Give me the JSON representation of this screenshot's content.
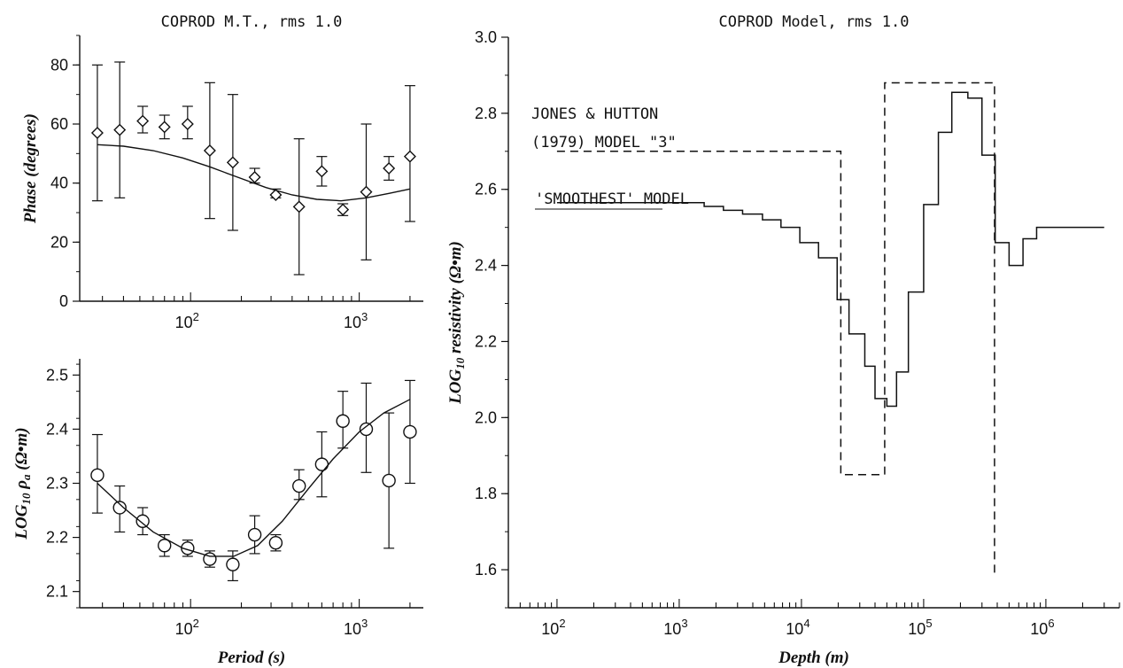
{
  "chart_data": [
    {
      "id": "phase",
      "type": "scatter",
      "title": "COPROD M.T., rms 1.0",
      "xlabel": "",
      "ylabel": "Phase (degrees)",
      "xscale": "log",
      "xlim": [
        22,
        2400
      ],
      "ylim": [
        0,
        90
      ],
      "xtick_labels": [
        "10",
        "10"
      ],
      "xtick_exponents": [
        "2",
        "3"
      ],
      "xtick_values": [
        100,
        1000
      ],
      "ytick_values": [
        0,
        20,
        40,
        60,
        80
      ],
      "ytick_labels": [
        "0",
        "20",
        "40",
        "60",
        "80"
      ],
      "series": [
        {
          "marker": "diamond",
          "x": [
            28,
            38,
            52,
            70,
            96,
            130,
            178,
            240,
            320,
            440,
            600,
            800,
            1100,
            1500,
            2000
          ],
          "y": [
            57,
            58,
            61,
            59,
            60,
            51,
            47,
            42,
            36,
            32,
            44,
            31,
            37,
            45,
            49
          ],
          "yerr_low": [
            34,
            35,
            57,
            55,
            55,
            28,
            24,
            40,
            35,
            9,
            39,
            29,
            14,
            41,
            27
          ],
          "yerr_high": [
            80,
            81,
            66,
            63,
            66,
            74,
            70,
            45,
            38,
            55,
            49,
            33,
            60,
            49,
            73
          ]
        },
        {
          "marker": "line",
          "x": [
            28,
            40,
            60,
            90,
            130,
            190,
            280,
            400,
            560,
            780,
            1100,
            1500,
            2000
          ],
          "y": [
            53,
            52.5,
            51,
            48.5,
            45.5,
            42,
            38.5,
            36,
            34.5,
            34,
            35,
            36.5,
            38
          ]
        }
      ]
    },
    {
      "id": "apparent-resistivity",
      "type": "scatter",
      "title": "",
      "xlabel": "Period (s)",
      "ylabel": "LOG10 ρa (Ω•m)",
      "ylabel_parts": [
        "LOG",
        "10",
        " ρ",
        "a",
        " (Ω•m)"
      ],
      "xscale": "log",
      "xlim": [
        22,
        2400
      ],
      "ylim": [
        2.07,
        2.53
      ],
      "xtick_labels": [
        "10",
        "10"
      ],
      "xtick_exponents": [
        "2",
        "3"
      ],
      "xtick_values": [
        100,
        1000
      ],
      "ytick_values": [
        2.1,
        2.2,
        2.3,
        2.4,
        2.5
      ],
      "ytick_labels": [
        "2.1",
        "2.2",
        "2.3",
        "2.4",
        "2.5"
      ],
      "series": [
        {
          "marker": "circle",
          "x": [
            28,
            38,
            52,
            70,
            96,
            130,
            178,
            240,
            320,
            440,
            600,
            800,
            1100,
            1500,
            2000
          ],
          "y": [
            2.315,
            2.255,
            2.23,
            2.185,
            2.18,
            2.16,
            2.15,
            2.205,
            2.19,
            2.295,
            2.335,
            2.415,
            2.4,
            2.305,
            2.395
          ],
          "yerr_low": [
            2.245,
            2.21,
            2.205,
            2.165,
            2.165,
            2.145,
            2.12,
            2.17,
            2.175,
            2.27,
            2.275,
            2.365,
            2.32,
            2.18,
            2.3
          ],
          "yerr_high": [
            2.39,
            2.295,
            2.255,
            2.205,
            2.195,
            2.175,
            2.175,
            2.24,
            2.205,
            2.325,
            2.395,
            2.47,
            2.485,
            2.43,
            2.49
          ]
        },
        {
          "marker": "line",
          "x": [
            28,
            40,
            60,
            90,
            130,
            180,
            250,
            350,
            500,
            700,
            1000,
            1400,
            2000
          ],
          "y": [
            2.3,
            2.255,
            2.21,
            2.18,
            2.165,
            2.165,
            2.185,
            2.23,
            2.29,
            2.345,
            2.395,
            2.43,
            2.455
          ]
        }
      ]
    },
    {
      "id": "model",
      "type": "line",
      "title": "COPROD Model, rms 1.0",
      "xlabel": "Depth (m)",
      "ylabel": "LOG10 resistivity (Ω•m)",
      "ylabel_parts": [
        "LOG",
        "10",
        " resistivity (Ω•m)"
      ],
      "xscale": "log",
      "xlim": [
        40,
        4000000
      ],
      "ylim": [
        1.5,
        3.0
      ],
      "xtick_labels": [
        "10",
        "10",
        "10",
        "10",
        "10"
      ],
      "xtick_exponents": [
        "2",
        "3",
        "4",
        "5",
        "6"
      ],
      "xtick_values": [
        100,
        1000,
        10000,
        100000,
        1000000
      ],
      "ytick_values": [
        1.6,
        1.8,
        2.0,
        2.2,
        2.4,
        2.6,
        2.8,
        3.0
      ],
      "ytick_labels": [
        "1.6",
        "1.8",
        "2.0",
        "2.2",
        "2.4",
        "2.6",
        "2.8",
        "3.0"
      ],
      "annotations": [
        "JONES & HUTTON",
        "(1979) MODEL \"3\"",
        "'SMOOTHEST' MODEL"
      ],
      "series": [
        {
          "name": "JONES & HUTTON (1979) MODEL \"3\"",
          "style": "dashed",
          "x": [
            100,
            21000,
            21000,
            48000,
            48000,
            380000,
            380000
          ],
          "y": [
            2.7,
            2.7,
            1.85,
            1.85,
            2.88,
            2.88,
            1.58
          ]
        },
        {
          "name": "'SMOOTHEST' MODEL",
          "style": "solid-step",
          "x": [
            100,
            1600,
            2300,
            3300,
            4800,
            6800,
            9700,
            13800,
            19600,
            24500,
            33000,
            40000,
            50000,
            60000,
            75000,
            100000,
            132000,
            170000,
            230000,
            300000,
            385000,
            500000,
            650000,
            840000,
            1100000,
            3000000
          ],
          "y": [
            2.565,
            2.555,
            2.545,
            2.535,
            2.52,
            2.5,
            2.46,
            2.42,
            2.31,
            2.22,
            2.135,
            2.05,
            2.03,
            2.12,
            2.33,
            2.56,
            2.75,
            2.855,
            2.84,
            2.69,
            2.46,
            2.4,
            2.47,
            2.5,
            2.5,
            2.5
          ]
        }
      ]
    }
  ]
}
